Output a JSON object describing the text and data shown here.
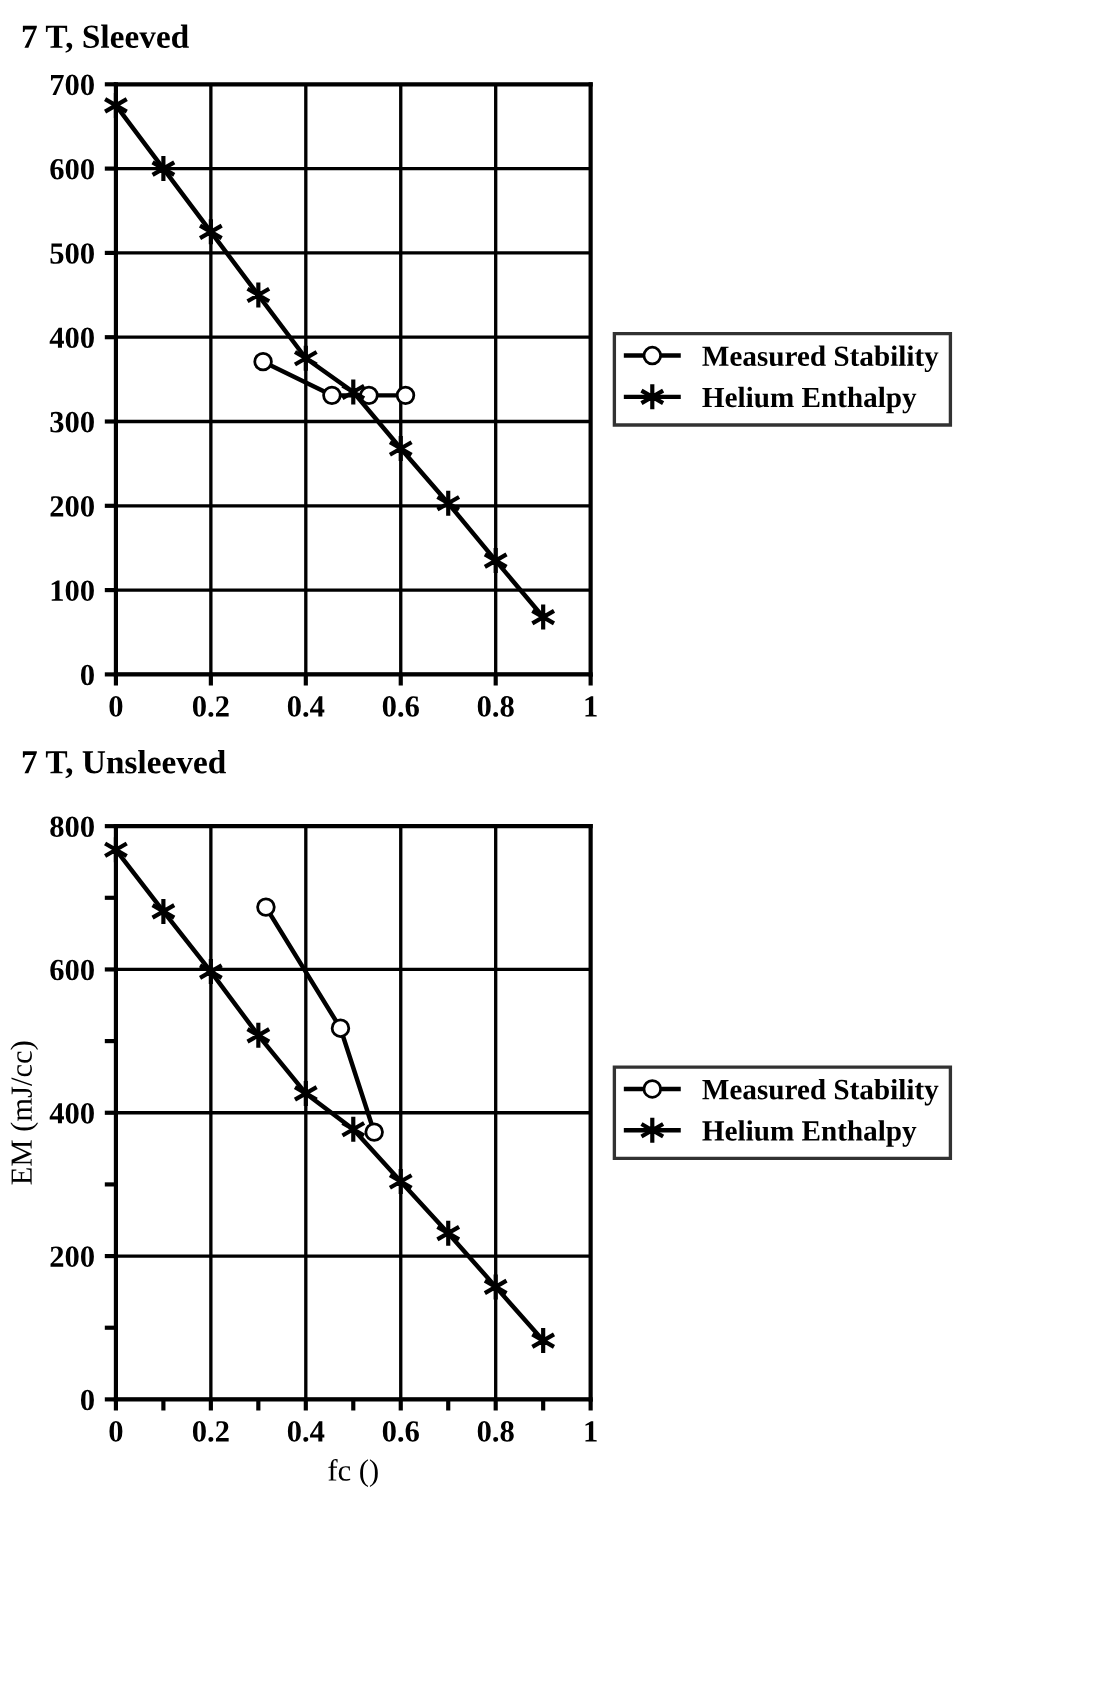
{
  "chart_data": [
    {
      "type": "line",
      "title": "7 T, Sleeved",
      "xlim": [
        0,
        1
      ],
      "xticks": [
        0,
        0.2,
        0.4,
        0.6,
        0.8,
        1
      ],
      "ylim": [
        0,
        700
      ],
      "yticks": [
        0,
        100,
        200,
        300,
        400,
        500,
        600,
        700
      ],
      "grid": true,
      "legend": "right",
      "series": [
        {
          "name": "Measured Stability",
          "color": "#000000",
          "marker": "circle",
          "x": [
            0.31,
            0.455,
            0.533,
            0.61
          ],
          "values": [
            371,
            331,
            331,
            331
          ]
        },
        {
          "name": "Helium Enthalpy",
          "color": "#000000",
          "marker": "cross",
          "x": [
            0,
            0.1,
            0.2,
            0.3,
            0.4,
            0.5,
            0.6,
            0.7,
            0.8,
            0.9
          ],
          "values": [
            675,
            600,
            525,
            450,
            375,
            335,
            268,
            203,
            135,
            68
          ]
        }
      ]
    },
    {
      "type": "line",
      "title": "7 T, Unsleeved",
      "xlabel": "fc ()",
      "ylabel": "EM (mJ/cc)",
      "xlim": [
        0,
        1
      ],
      "xticks": [
        0,
        {
          "value": 0.1,
          "label": null
        },
        0.2,
        {
          "value": 0.3,
          "label": null
        },
        0.4,
        {
          "value": 0.5,
          "label": null
        },
        0.6,
        {
          "value": 0.7,
          "label": null
        },
        0.8,
        {
          "value": 0.9,
          "label": null
        },
        1
      ],
      "ylim": [
        0,
        800
      ],
      "yticks": [
        0,
        {
          "value": 100,
          "label": null
        },
        200,
        {
          "value": 300,
          "label": null
        },
        400,
        {
          "value": 500,
          "label": null
        },
        600,
        {
          "value": 700,
          "label": null
        },
        800
      ],
      "grid": true,
      "legend": "right",
      "series": [
        {
          "name": "Measured Stability",
          "color": "#000000",
          "marker": "circle",
          "x": [
            0.316,
            0.473,
            0.544
          ],
          "values": [
            687,
            518,
            373
          ]
        },
        {
          "name": "Helium Enthalpy",
          "color": "#000000",
          "marker": "cross",
          "x": [
            0,
            0.1,
            0.2,
            0.3,
            0.4,
            0.5,
            0.6,
            0.7,
            0.8,
            0.9
          ],
          "values": [
            767,
            681,
            597,
            508,
            427,
            377,
            304,
            232,
            157,
            82
          ]
        }
      ]
    }
  ]
}
